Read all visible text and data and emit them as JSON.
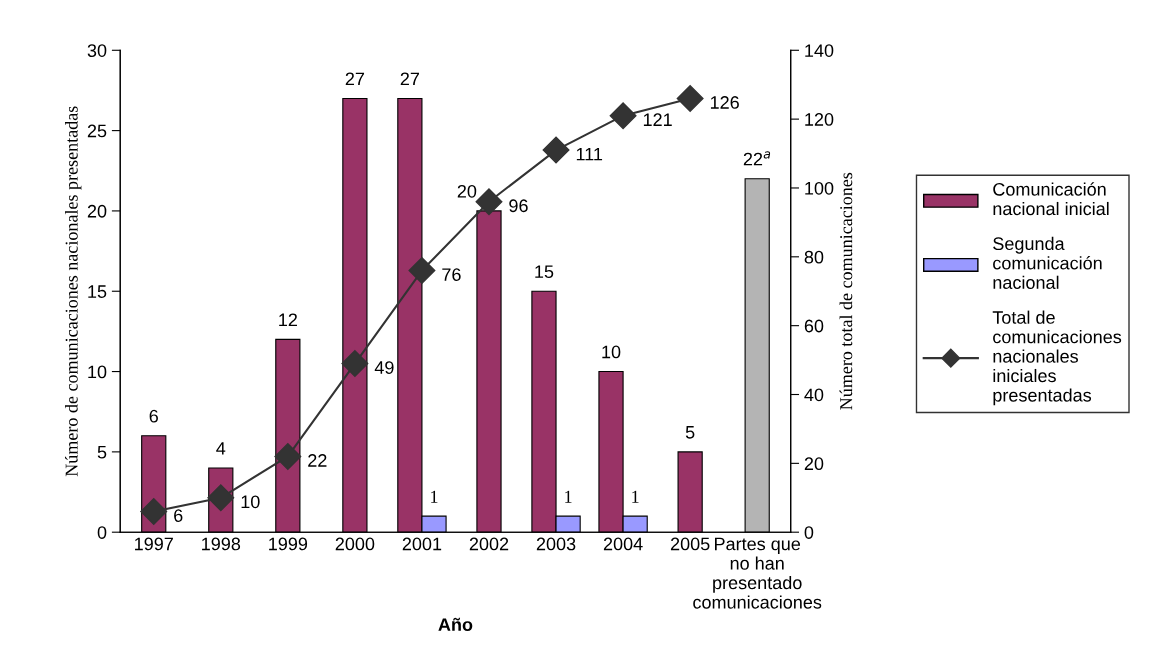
{
  "chart_data": {
    "type": "bar",
    "xlabel": "Año",
    "ylabel": "Número de comunicaciones nacionales presentadas",
    "y2label": "Número total de comunicaciones",
    "categories": [
      "1997",
      "1998",
      "1999",
      "2000",
      "2001",
      "2002",
      "2003",
      "2004",
      "2005",
      "Partes que\nno han\npresentado\ncomunicaciones"
    ],
    "series": [
      {
        "name": "Comunicación\nnacional inicial",
        "color": "#993366",
        "values": [
          6,
          4,
          12,
          27,
          27,
          20,
          15,
          10,
          5,
          null
        ],
        "value_labels": [
          "6",
          "4",
          "12",
          "27",
          "27",
          "20",
          "15",
          "10",
          "5",
          null
        ]
      },
      {
        "name": "Segunda\ncomunicación\nnacional",
        "color": "#9999ff",
        "values": [
          null,
          null,
          null,
          null,
          1,
          null,
          1,
          1,
          null,
          null
        ],
        "value_labels": [
          null,
          null,
          null,
          null,
          "1",
          null,
          "1",
          "1",
          null,
          null
        ]
      },
      {
        "color": "#b4b4b4",
        "values": [
          null,
          null,
          null,
          null,
          null,
          null,
          null,
          null,
          null,
          22
        ],
        "value_labels": [
          null,
          null,
          null,
          null,
          null,
          null,
          null,
          null,
          null,
          "22$^{a}$"
        ]
      },
      {
        "name": "Total de\ncomunicaciones\nnacionales\niniciales\npresentadas",
        "type": "line",
        "axis": "y2",
        "marker": "diamond",
        "color": "#333333",
        "values": [
          6,
          10,
          22,
          49,
          76,
          96,
          111,
          121,
          126,
          null
        ],
        "value_labels": [
          "6",
          "10",
          "22",
          "49",
          "76",
          "96",
          "111",
          "121",
          "126",
          null
        ]
      }
    ],
    "ylim": [
      0,
      30
    ],
    "yticks": [
      0,
      5,
      10,
      15,
      20,
      25,
      30
    ],
    "y2lim": [
      0,
      140
    ],
    "y2ticks": [
      0,
      20,
      40,
      60,
      80,
      100,
      120,
      140
    ],
    "legend": "right",
    "grid": false
  }
}
